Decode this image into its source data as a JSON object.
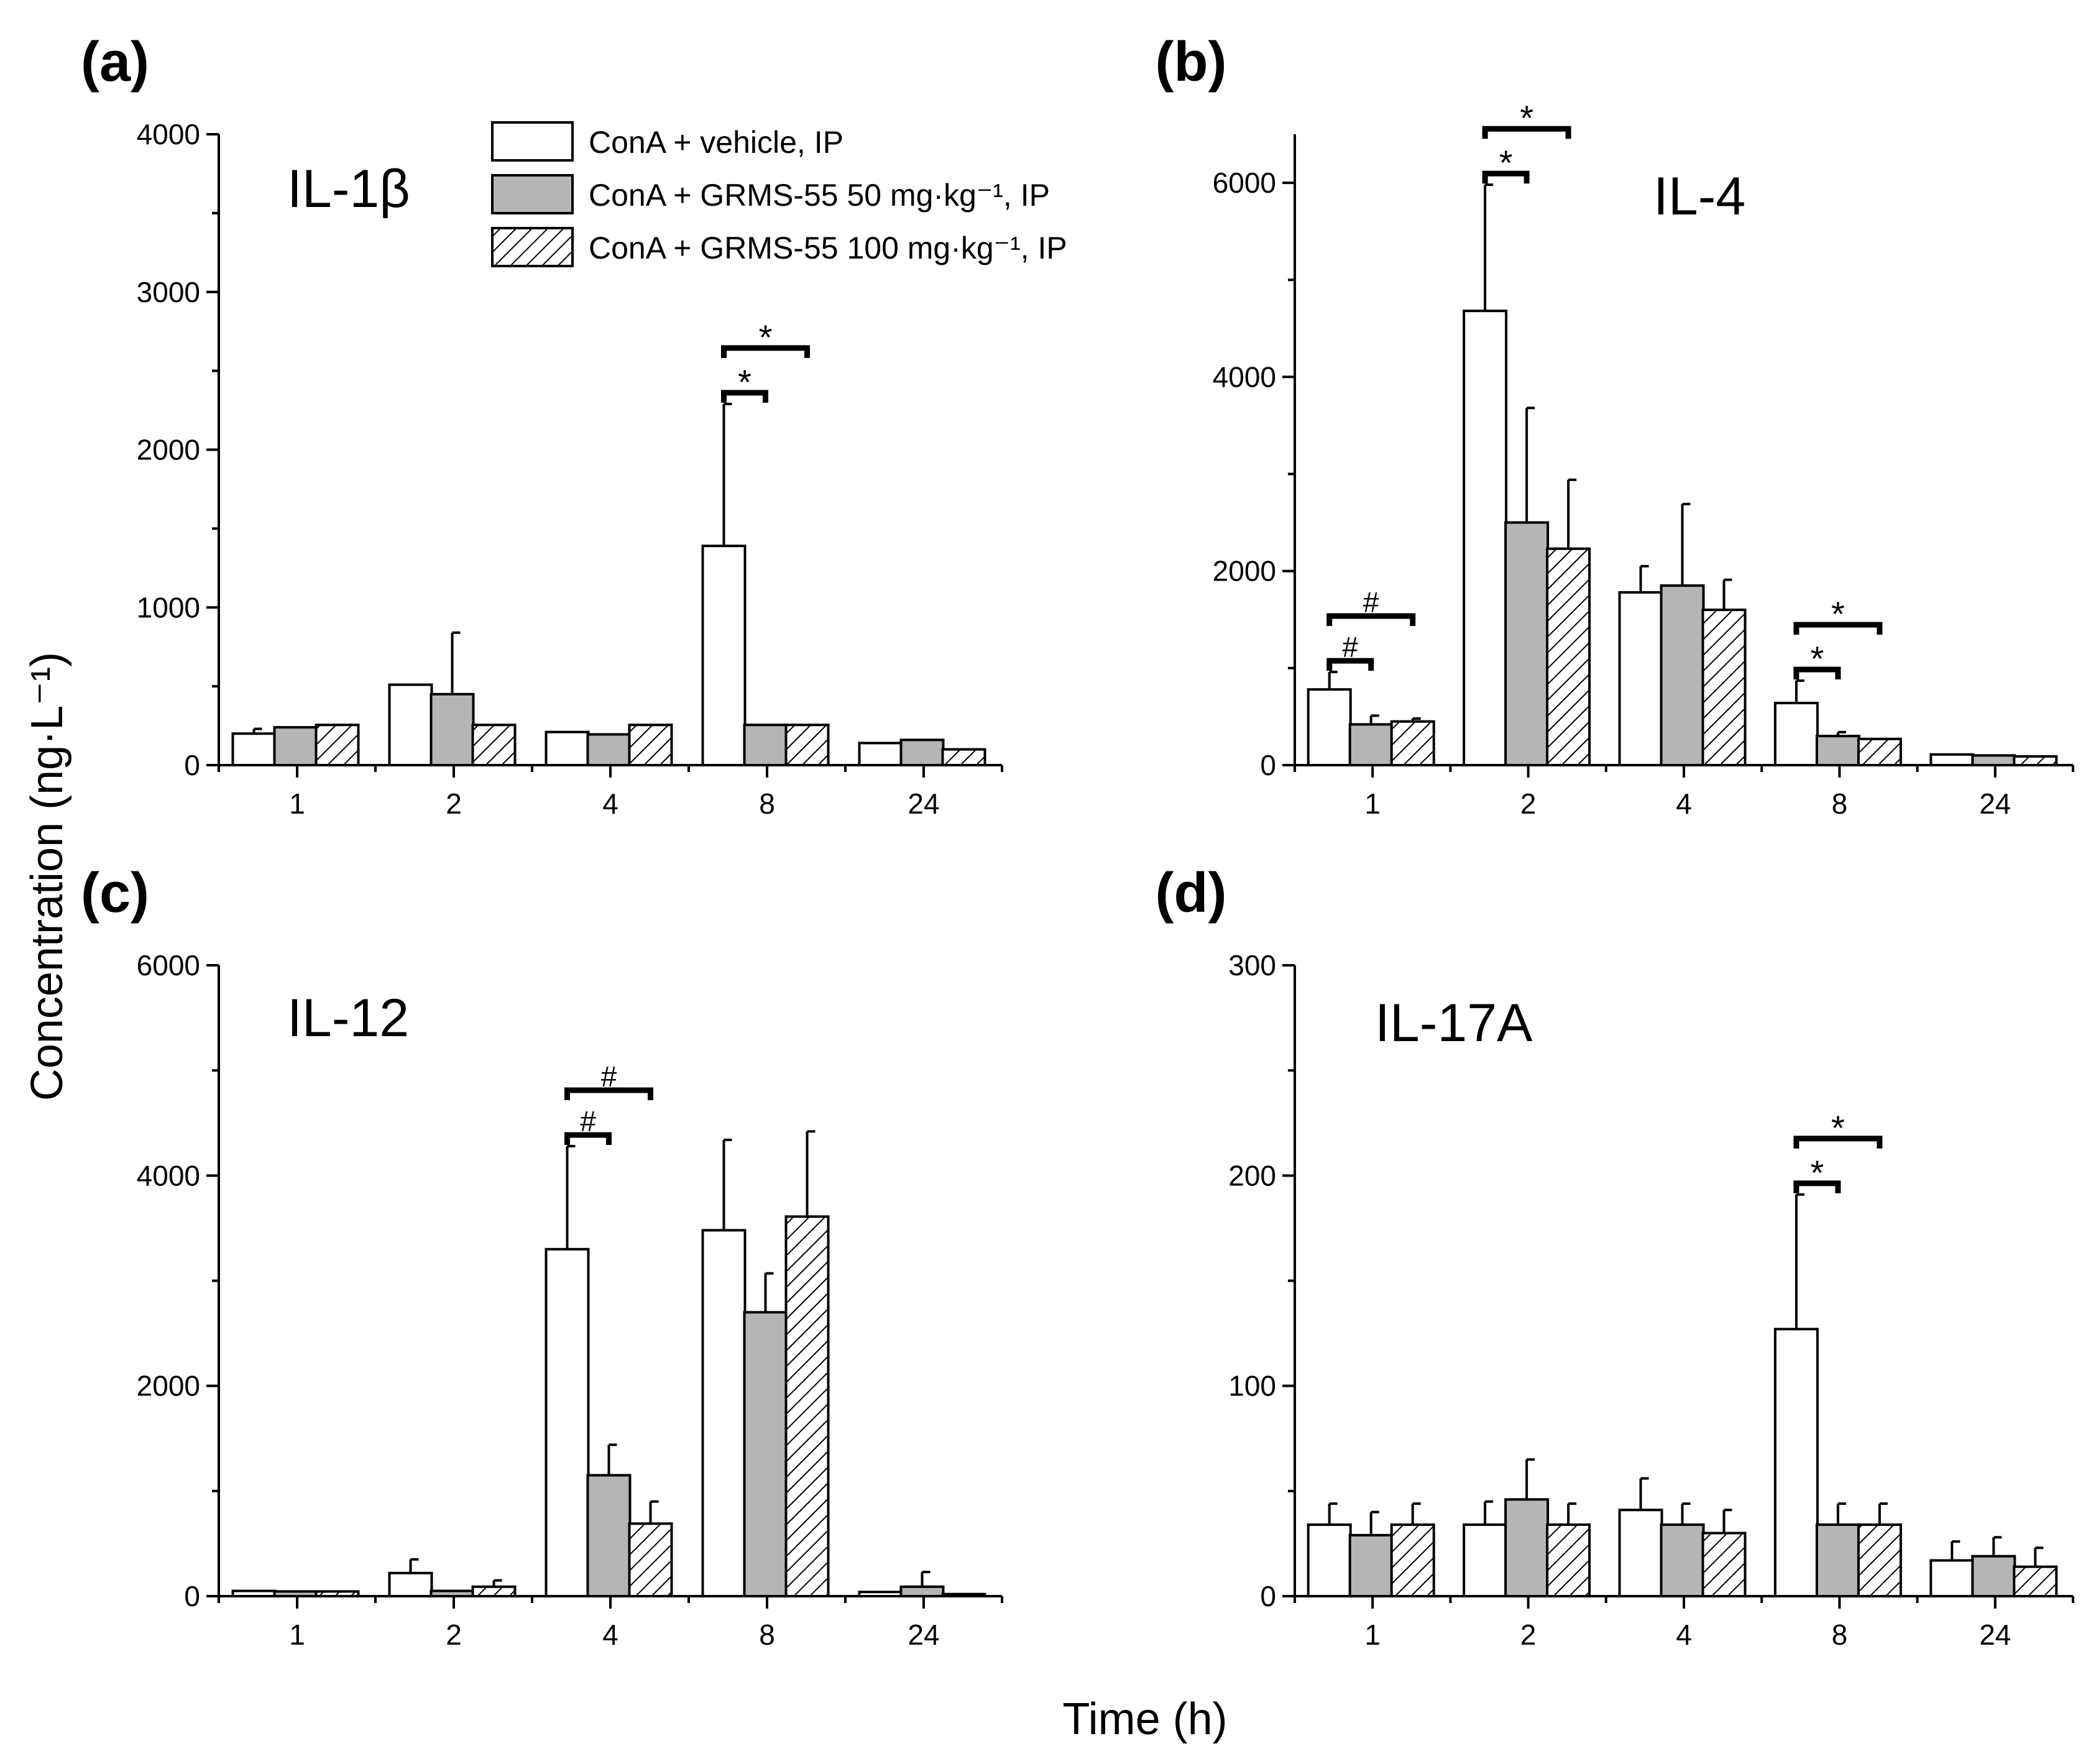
{
  "figure": {
    "y_axis_label": "Concentration (ng·L⁻¹)",
    "x_axis_label": "Time (h)",
    "legend": [
      {
        "label": "ConA + vehicle, IP",
        "fill": "white"
      },
      {
        "label": "ConA + GRMS-55 50 mg·kg⁻¹, IP",
        "fill": "gray"
      },
      {
        "label": "ConA + GRMS-55 100 mg·kg⁻¹, IP",
        "fill": "hatch"
      }
    ],
    "colors": {
      "vehicle": "#ffffff",
      "dose50": "#b5b5b5",
      "dose100": "#ffffff",
      "stroke": "#000000"
    }
  },
  "chart_data": [
    {
      "type": "bar",
      "panel_label": "(a)",
      "title": "IL-1β",
      "categories": [
        "1",
        "2",
        "4",
        "8",
        "24"
      ],
      "ylim": [
        0,
        4000
      ],
      "yticks": [
        0,
        1000,
        2000,
        3000,
        4000
      ],
      "series": [
        {
          "name": "ConA + vehicle, IP",
          "values": [
            200,
            510,
            210,
            1390,
            140
          ],
          "errors": [
            30,
            0,
            0,
            900,
            0
          ]
        },
        {
          "name": "ConA + GRMS-55 50 mg·kg⁻¹, IP",
          "values": [
            240,
            450,
            195,
            255,
            160
          ],
          "errors": [
            0,
            390,
            0,
            0,
            0
          ]
        },
        {
          "name": "ConA + GRMS-55 100 mg·kg⁻¹, IP",
          "values": [
            255,
            255,
            255,
            255,
            100
          ],
          "errors": [
            0,
            0,
            0,
            0,
            0
          ]
        }
      ],
      "significance": [
        {
          "category": "8",
          "from": 0,
          "to": 1,
          "label": "*"
        },
        {
          "category": "8",
          "from": 0,
          "to": 2,
          "label": "*"
        }
      ]
    },
    {
      "type": "bar",
      "panel_label": "(b)",
      "title": "IL-4",
      "categories": [
        "1",
        "2",
        "4",
        "8",
        "24"
      ],
      "ylim": [
        0,
        6500
      ],
      "yticks": [
        0,
        2000,
        4000,
        6000
      ],
      "series": [
        {
          "name": "ConA + vehicle, IP",
          "values": [
            780,
            4680,
            1780,
            640,
            110
          ],
          "errors": [
            180,
            1300,
            270,
            230,
            0
          ]
        },
        {
          "name": "ConA + GRMS-55 50 mg·kg⁻¹, IP",
          "values": [
            420,
            2500,
            1850,
            300,
            100
          ],
          "errors": [
            90,
            1180,
            840,
            40,
            0
          ]
        },
        {
          "name": "ConA + GRMS-55 100 mg·kg⁻¹, IP",
          "values": [
            450,
            2230,
            1600,
            270,
            90
          ],
          "errors": [
            30,
            710,
            310,
            0,
            0
          ]
        }
      ],
      "significance": [
        {
          "category": "1",
          "from": 0,
          "to": 1,
          "label": "#"
        },
        {
          "category": "1",
          "from": 0,
          "to": 2,
          "label": "#"
        },
        {
          "category": "2",
          "from": 0,
          "to": 1,
          "label": "*"
        },
        {
          "category": "2",
          "from": 0,
          "to": 2,
          "label": "*"
        },
        {
          "category": "8",
          "from": 0,
          "to": 1,
          "label": "*"
        },
        {
          "category": "8",
          "from": 0,
          "to": 2,
          "label": "*"
        }
      ]
    },
    {
      "type": "bar",
      "panel_label": "(c)",
      "title": "IL-12",
      "categories": [
        "1",
        "2",
        "4",
        "8",
        "24"
      ],
      "ylim": [
        0,
        6000
      ],
      "yticks": [
        0,
        2000,
        4000,
        6000
      ],
      "series": [
        {
          "name": "ConA + vehicle, IP",
          "values": [
            50,
            220,
            3300,
            3480,
            40
          ],
          "errors": [
            0,
            130,
            980,
            860,
            0
          ]
        },
        {
          "name": "ConA + GRMS-55 50 mg·kg⁻¹, IP",
          "values": [
            45,
            50,
            1150,
            2700,
            90
          ],
          "errors": [
            0,
            0,
            290,
            370,
            140
          ]
        },
        {
          "name": "ConA + GRMS-55 100 mg·kg⁻¹, IP",
          "values": [
            45,
            90,
            690,
            3610,
            20
          ],
          "errors": [
            0,
            60,
            210,
            810,
            0
          ]
        }
      ],
      "significance": [
        {
          "category": "4",
          "from": 0,
          "to": 1,
          "label": "#"
        },
        {
          "category": "4",
          "from": 0,
          "to": 2,
          "label": "#"
        }
      ]
    },
    {
      "type": "bar",
      "panel_label": "(d)",
      "title": "IL-17A",
      "categories": [
        "1",
        "2",
        "4",
        "8",
        "24"
      ],
      "ylim": [
        0,
        300
      ],
      "yticks": [
        0,
        100,
        200,
        300
      ],
      "series": [
        {
          "name": "ConA + vehicle, IP",
          "values": [
            34,
            34,
            41,
            127,
            17
          ],
          "errors": [
            10,
            11,
            15,
            64,
            9
          ]
        },
        {
          "name": "ConA + GRMS-55 50 mg·kg⁻¹, IP",
          "values": [
            29,
            46,
            34,
            34,
            19
          ],
          "errors": [
            11,
            19,
            10,
            10,
            9
          ]
        },
        {
          "name": "ConA + GRMS-55 100 mg·kg⁻¹, IP",
          "values": [
            34,
            34,
            30,
            34,
            14
          ],
          "errors": [
            10,
            10,
            11,
            10,
            9
          ]
        }
      ],
      "significance": [
        {
          "category": "8",
          "from": 0,
          "to": 1,
          "label": "*"
        },
        {
          "category": "8",
          "from": 0,
          "to": 2,
          "label": "*"
        }
      ]
    }
  ]
}
